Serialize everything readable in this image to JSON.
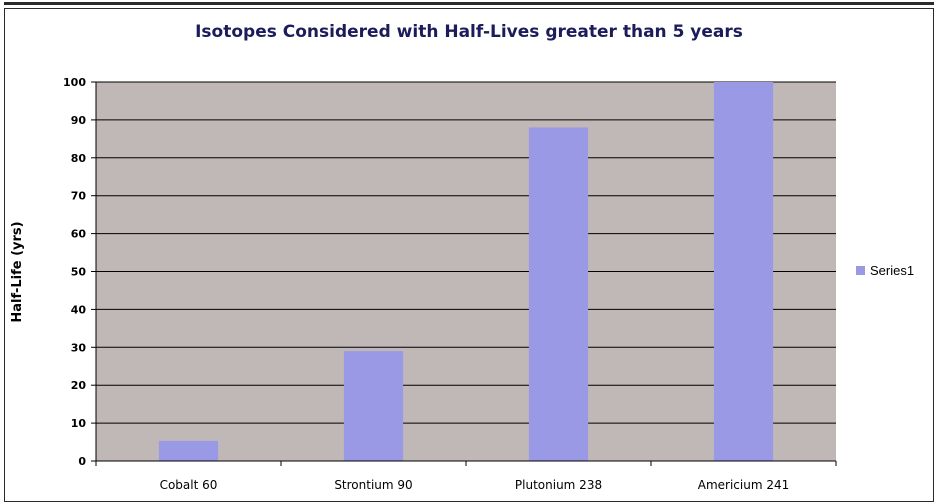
{
  "chart_data": {
    "type": "bar",
    "title": "Isotopes Considered with Half-Lives greater than 5 years",
    "xlabel": "",
    "ylabel": "Half-Life (yrs)",
    "categories": [
      "Cobalt 60",
      "Strontium 90",
      "Plutonium 238",
      "Americium 241"
    ],
    "series": [
      {
        "name": "Series1",
        "values": [
          5.3,
          29,
          88,
          100
        ]
      }
    ],
    "ylim": [
      0,
      100
    ],
    "yticks": [
      0,
      10,
      20,
      30,
      40,
      50,
      60,
      70,
      80,
      90,
      100
    ],
    "grid": true,
    "legend_position": "right",
    "colors": {
      "bar": "#9999e6",
      "plot_background": "#c0b7b7",
      "title": "#1c1c5a",
      "gridline": "#000000"
    }
  }
}
